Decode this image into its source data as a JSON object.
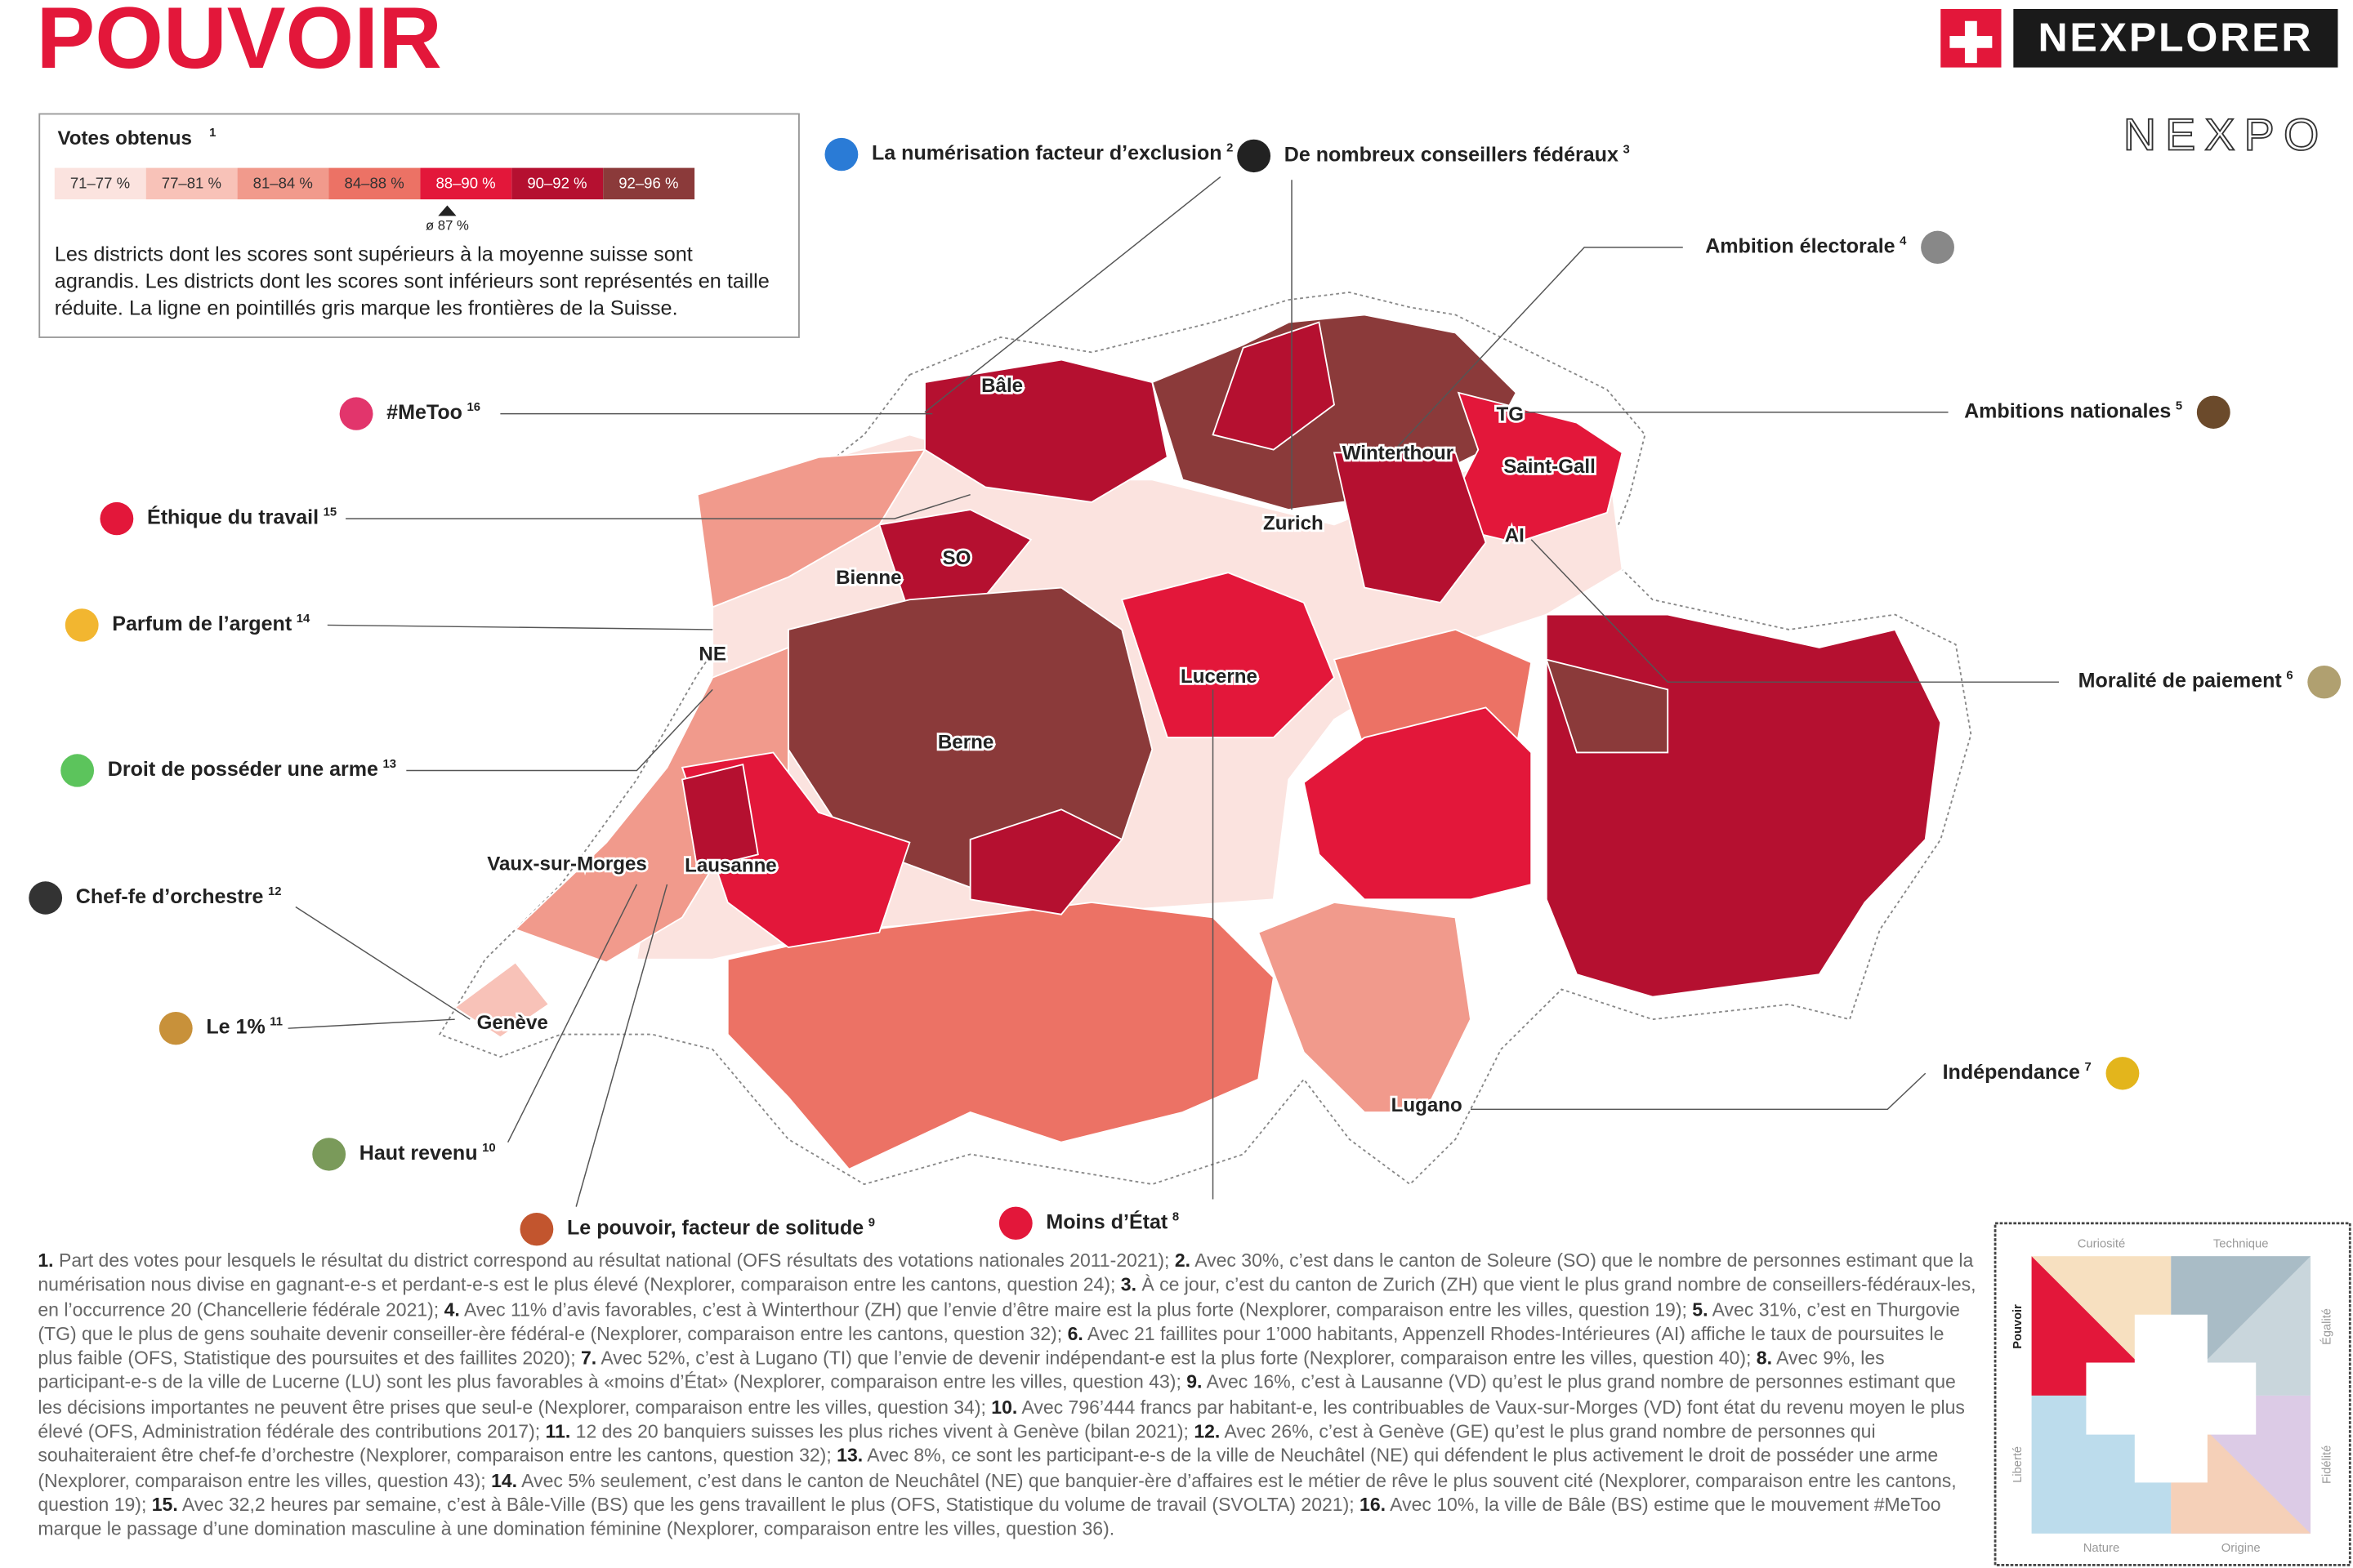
{
  "header": {
    "title": "POUVOIR",
    "logo": "NEXPLORER",
    "brand_mark": "NEXPO"
  },
  "legend": {
    "title": "Votes obtenus",
    "note": "1",
    "items": [
      {
        "label": "71–77 %",
        "color": "#fbe3df"
      },
      {
        "label": "77–81 %",
        "color": "#f8c2b8"
      },
      {
        "label": "81–84 %",
        "color": "#f19a8c"
      },
      {
        "label": "84–88 %",
        "color": "#ec7265"
      },
      {
        "label": "88–90 %",
        "color": "#e3173a"
      },
      {
        "label": "90–92 %",
        "color": "#b51030"
      },
      {
        "label": "92–96 %",
        "color": "#8b3a3a"
      }
    ],
    "average": "ø 87 %",
    "description": "Les districts dont les scores sont supérieurs à la moyenne suisse sont agrandis. Les districts dont les scores sont inférieurs sont représentés en taille réduite. La ligne en pointillés gris marque les frontières de la Suisse."
  },
  "callouts": [
    {
      "label": "La numérisation facteur d’exclusion",
      "note": "2"
    },
    {
      "label": "De nombreux conseillers fédéraux",
      "note": "3"
    },
    {
      "label": "Ambition électorale",
      "note": "4"
    },
    {
      "label": "Ambitions nationales",
      "note": "5"
    },
    {
      "label": "Moralité de paiement",
      "note": "6"
    },
    {
      "label": "Indépendance",
      "note": "7"
    },
    {
      "label": "Moins d’État",
      "note": "8"
    },
    {
      "label": "Le pouvoir, facteur de solitude",
      "note": "9"
    },
    {
      "label": "Haut revenu",
      "note": "10"
    },
    {
      "label": "Le 1%",
      "note": "11"
    },
    {
      "label": "Chef-fe d’orchestre",
      "note": "12"
    },
    {
      "label": "Droit de posséder une arme",
      "note": "13"
    },
    {
      "label": "Parfum de l’argent",
      "note": "14"
    },
    {
      "label": "Éthique du travail",
      "note": "15"
    },
    {
      "label": "#MeToo",
      "note": "16"
    }
  ],
  "cities": [
    "Bâle",
    "TG",
    "Winterthour",
    "Saint-Gall",
    "Zurich",
    "AI",
    "SO",
    "Bienne",
    "NE",
    "Lucerne",
    "Berne",
    "Vaux-sur-Morges",
    "Lausanne",
    "Genève",
    "Lugano"
  ],
  "footnotes": [
    {
      "num": "1.",
      "text": "Part des votes pour lesquels le résultat du district correspond au résultat national (OFS résultats des votations nationales 2011-2021);"
    },
    {
      "num": "2.",
      "text": "Avec 30%, c’est dans le canton de Soleure (SO) que le nombre de personnes estimant que la numérisation nous divise en gagnant-e-s et perdant-e-s est le plus élevé (Nexplorer, comparaison entre les cantons, question 24);"
    },
    {
      "num": "3.",
      "text": "À ce jour, c’est du canton de Zurich (ZH) que vient le plus grand nombre de conseillers-fédéraux-les, en l’occurrence 20 (Chancellerie fédérale 2021);"
    },
    {
      "num": "4.",
      "text": "Avec 11% d’avis favorables, c’est à Winterthour (ZH) que l’envie d’être maire est la plus forte (Nexplorer, comparaison entre les villes, question 19);"
    },
    {
      "num": "5.",
      "text": "Avec 31%, c’est en Thurgovie (TG) que le plus de gens souhaite devenir conseiller-ère fédéral-e (Nexplorer, comparaison entre les cantons, question 32);"
    },
    {
      "num": "6.",
      "text": "Avec 21 faillites pour 1’000 habitants, Appenzell Rhodes-Intérieures (AI) affiche le taux de poursuites le plus faible (OFS, Statistique des poursuites et des faillites 2020);"
    },
    {
      "num": "7.",
      "text": "Avec 52%, c’est à Lugano (TI) que l’envie de devenir indépendant-e est la plus forte (Nexplorer, comparaison entre les villes, question 40);"
    },
    {
      "num": "8.",
      "text": "Avec 9%, les participant-e-s de la ville de Lucerne (LU) sont les plus favorables à «moins d’État» (Nexplorer, comparaison entre les villes, question 43);"
    },
    {
      "num": "9.",
      "text": "Avec 16%, c’est à Lausanne (VD) qu’est le plus grand nombre de personnes estimant que les décisions importantes ne peuvent être prises que seul-e (Nexplorer, comparaison entre les villes, question 34);"
    },
    {
      "num": "10.",
      "text": "Avec 796’444 francs par habitant-e, les contribuables de Vaux-sur-Morges (VD) font état du revenu moyen le plus élevé (OFS, Administration fédérale des contributions 2017);"
    },
    {
      "num": "11.",
      "text": "12 des 20 banquiers suisses les plus riches vivent à Genève (bilan 2021);"
    },
    {
      "num": "12.",
      "text": "Avec 26%, c’est à Genève (GE) qu’est le plus grand nombre de personnes qui souhaiteraient être chef-fe d’orchestre (Nexplorer, comparaison entre les cantons, question 32);"
    },
    {
      "num": "13.",
      "text": "Avec 8%, ce sont les participant-e-s de la ville de Neuchâtel (NE) qui défendent le plus activement le droit de posséder une arme (Nexplorer, comparaison entre les villes, question 43);"
    },
    {
      "num": "14.",
      "text": "Avec 5% seulement, c’est dans le canton de Neuchâtel (NE) que banquier-ère d’affaires est le métier de rêve le plus souvent cité (Nexplorer, comparaison entre les cantons, question 19);"
    },
    {
      "num": "15.",
      "text": "Avec 32,2 heures par semaine, c’est à Bâle-Ville (BS) que les gens travaillent le plus (OFS, Statistique du volume de travail (SVOLTA) 2021);"
    },
    {
      "num": "16.",
      "text": "Avec 10%, la ville de Bâle (BS) estime que le mouvement #MeToo marque le passage d’une domination masculine à une domination féminine (Nexplorer, comparaison entre les villes, question 36)."
    }
  ],
  "compass": {
    "top_left": "Curiosité",
    "top_right": "Technique",
    "right_top": "Égalité",
    "right_bottom": "Fidélité",
    "bottom_right": "Origine",
    "bottom_left": "Nature",
    "left_bottom": "Liberté",
    "left_top": "Pouvoir"
  }
}
